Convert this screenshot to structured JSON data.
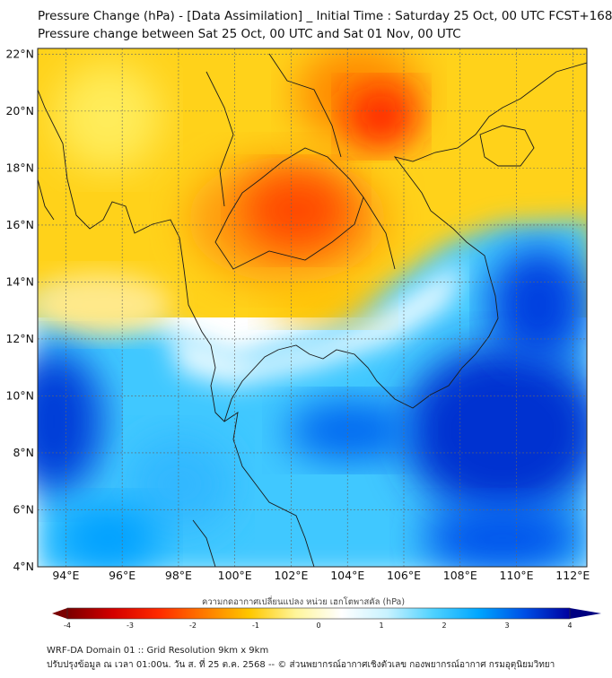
{
  "title": {
    "line1": "Pressure Change (hPa) - [Data Assimilation] _ Initial Time : Saturday 25 Oct, 00 UTC FCST+168",
    "line2": "Pressure change between Sat 25 Oct, 00 UTC and Sat 01 Nov, 00 UTC"
  },
  "map": {
    "lon_range": [
      93,
      112.5
    ],
    "lat_range": [
      4,
      22.2
    ],
    "lat_labels": [
      "22°N",
      "20°N",
      "18°N",
      "16°N",
      "14°N",
      "12°N",
      "10°N",
      "8°N",
      "6°N",
      "4°N"
    ],
    "lat_values": [
      22,
      20,
      18,
      16,
      14,
      12,
      10,
      8,
      6,
      4
    ],
    "lon_labels": [
      "94°E",
      "96°E",
      "98°E",
      "100°E",
      "102°E",
      "104°E",
      "106°E",
      "108°E",
      "110°E",
      "112°E"
    ],
    "lon_values": [
      94,
      96,
      98,
      100,
      102,
      104,
      106,
      108,
      110,
      112
    ]
  },
  "colorbar": {
    "label": "ความกดอากาศเปลี่ยนแปลง หน่วย เฮกโตพาสคัล (hPa)",
    "range": [
      -4,
      4
    ],
    "tick_labels": [
      "-4",
      "-3",
      "-2",
      "-1",
      "0",
      "1",
      "2",
      "3",
      "4"
    ],
    "tick_values": [
      -4,
      -3,
      -2,
      -1,
      0,
      1,
      2,
      3,
      4
    ],
    "colors": [
      "#7a0000",
      "#d40000",
      "#ff2a00",
      "#ff7a00",
      "#ffc800",
      "#fff59a",
      "#ffffff",
      "#c8f2ff",
      "#4fd2ff",
      "#00a6ff",
      "#0050e6",
      "#0000a0"
    ]
  },
  "footer": {
    "line1": "WRF-DA Domain 01 :: Grid Resolution 9km x 9km",
    "line2": "ปรับปรุงข้อมูล ณ เวลา 01:00น. วัน ส. ที่ 25 ต.ค. 2568 -- © ส่วนพยากรณ์อากาศเชิงตัวเลข กองพยากรณ์อากาศ กรมอุตุนิยมวิทยา"
  }
}
